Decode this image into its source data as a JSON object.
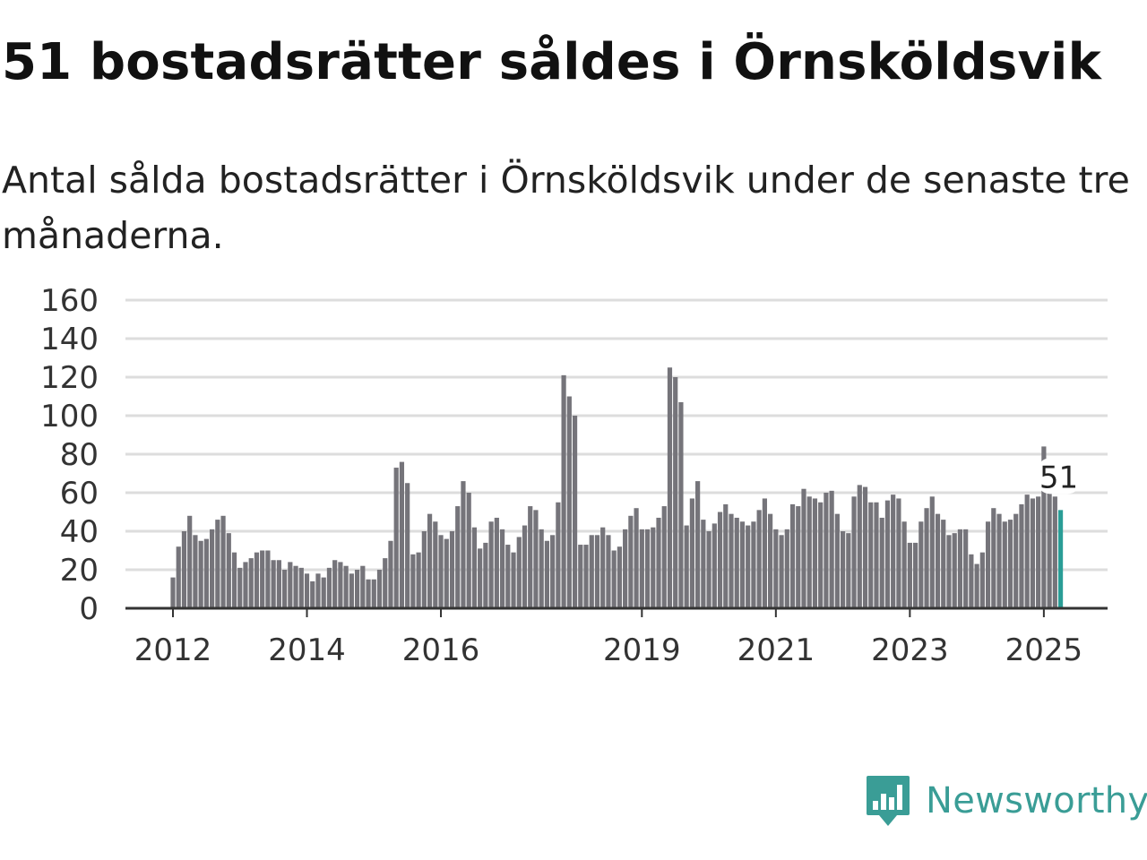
{
  "header": {
    "title": "51 bostadsrätter såldes i Örnsköldsvik",
    "subtitle": "Antal sålda bostadsrätter i Örnsköldsvik under de senaste tre månaderna."
  },
  "brand": {
    "name": "Newsworthy",
    "icon": "newsworthy-logo-icon",
    "color": "#3a9d96"
  },
  "chart_data": {
    "type": "bar",
    "start_month": "2012-01",
    "ylim": [
      0,
      160
    ],
    "yticks": [
      0,
      20,
      40,
      60,
      80,
      100,
      120,
      140,
      160
    ],
    "xticks": [
      "2012",
      "2014",
      "2016",
      "2019",
      "2021",
      "2023",
      "2025"
    ],
    "grid": true,
    "bar_color": "#75747a",
    "highlight_color": "#2a9d96",
    "annotation": "51",
    "values": [
      16,
      32,
      40,
      48,
      38,
      35,
      36,
      41,
      46,
      48,
      39,
      29,
      21,
      24,
      26,
      29,
      30,
      30,
      25,
      25,
      20,
      24,
      22,
      21,
      18,
      14,
      18,
      16,
      21,
      25,
      24,
      22,
      18,
      20,
      22,
      15,
      15,
      20,
      26,
      35,
      73,
      76,
      65,
      28,
      29,
      40,
      49,
      45,
      38,
      36,
      40,
      53,
      66,
      60,
      42,
      31,
      34,
      45,
      47,
      41,
      33,
      29,
      37,
      43,
      53,
      51,
      41,
      35,
      38,
      55,
      121,
      110,
      100,
      33,
      33,
      38,
      38,
      42,
      38,
      30,
      32,
      41,
      48,
      52,
      41,
      41,
      42,
      47,
      53,
      125,
      120,
      107,
      43,
      57,
      66,
      46,
      40,
      44,
      50,
      54,
      49,
      47,
      45,
      43,
      45,
      51,
      57,
      49,
      41,
      38,
      41,
      54,
      53,
      62,
      58,
      57,
      55,
      60,
      61,
      49,
      40,
      39,
      58,
      64,
      63,
      55,
      55,
      47,
      56,
      59,
      57,
      45,
      34,
      34,
      45,
      52,
      58,
      49,
      46,
      38,
      39,
      41,
      41,
      28,
      23,
      29,
      45,
      52,
      49,
      45,
      46,
      49,
      54,
      59,
      57,
      58,
      84,
      65,
      58,
      51
    ]
  }
}
